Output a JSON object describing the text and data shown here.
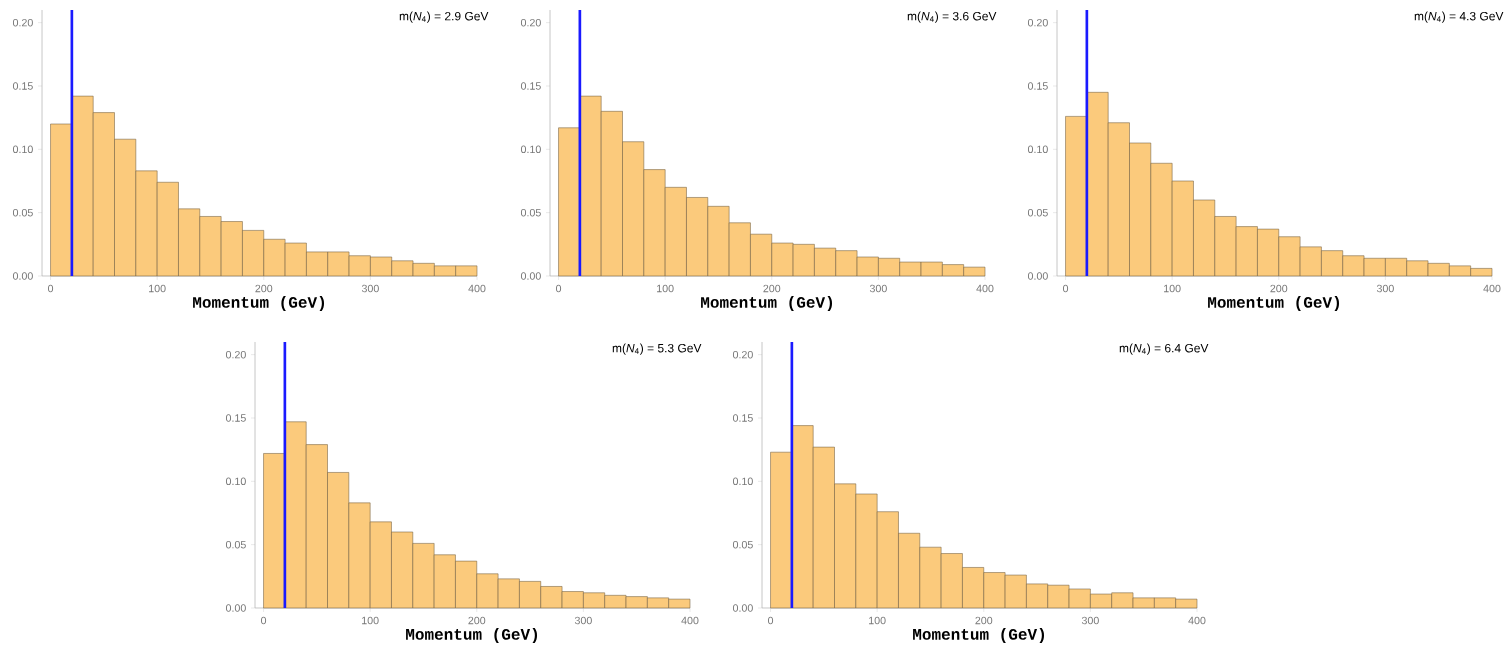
{
  "chart_data": [
    {
      "type": "histogram",
      "title": "m(*N*$_{4}$) =  2.9 GeV",
      "xlabel": "Momentum (GeV)",
      "bins": [
        0,
        20,
        40,
        60,
        80,
        100,
        120,
        140,
        160,
        180,
        200,
        220,
        240,
        260,
        280,
        300,
        320,
        340,
        360,
        380,
        400
      ],
      "values": [
        0.12,
        0.142,
        0.129,
        0.108,
        0.083,
        0.074,
        0.053,
        0.047,
        0.043,
        0.036,
        0.029,
        0.026,
        0.019,
        0.019,
        0.016,
        0.015,
        0.012,
        0.01,
        0.008,
        0.008
      ],
      "color": "#fbca7c",
      "xlim": [
        -8,
        400
      ],
      "ylim": [
        0,
        0.21
      ],
      "xticks": [
        0,
        100,
        200,
        300,
        400
      ],
      "yticks": [
        {
          "value": 0,
          "label": "0.00"
        },
        {
          "value": 0.05,
          "label": "0.05"
        },
        {
          "value": 0.1,
          "label": "0.10"
        },
        {
          "value": 0.15,
          "label": "0.15"
        },
        {
          "value": 0.2,
          "label": "0.20"
        }
      ],
      "ref_lines": [
        {
          "axis": "x",
          "value": 20,
          "color": "#1a1aff"
        }
      ]
    },
    {
      "type": "histogram",
      "title": "m(*N*$_{4}$) =  3.6 GeV",
      "xlabel": "Momentum (GeV)",
      "bins": [
        0,
        20,
        40,
        60,
        80,
        100,
        120,
        140,
        160,
        180,
        200,
        220,
        240,
        260,
        280,
        300,
        320,
        340,
        360,
        380,
        400
      ],
      "values": [
        0.117,
        0.142,
        0.13,
        0.106,
        0.084,
        0.07,
        0.062,
        0.055,
        0.042,
        0.033,
        0.026,
        0.025,
        0.022,
        0.02,
        0.015,
        0.014,
        0.011,
        0.011,
        0.009,
        0.007
      ],
      "color": "#fbca7c",
      "xlim": [
        -8,
        400
      ],
      "ylim": [
        0,
        0.21
      ],
      "xticks": [
        0,
        100,
        200,
        300,
        400
      ],
      "yticks": [
        {
          "value": 0,
          "label": "0.00"
        },
        {
          "value": 0.05,
          "label": "0.05"
        },
        {
          "value": 0.1,
          "label": "0.10"
        },
        {
          "value": 0.15,
          "label": "0.15"
        },
        {
          "value": 0.2,
          "label": "0.20"
        }
      ],
      "ref_lines": [
        {
          "axis": "x",
          "value": 20,
          "color": "#1a1aff"
        }
      ]
    },
    {
      "type": "histogram",
      "title": "m(*N*$_{4}$) =  4.3 GeV",
      "xlabel": "Momentum (GeV)",
      "bins": [
        0,
        20,
        40,
        60,
        80,
        100,
        120,
        140,
        160,
        180,
        200,
        220,
        240,
        260,
        280,
        300,
        320,
        340,
        360,
        380,
        400
      ],
      "values": [
        0.126,
        0.145,
        0.121,
        0.105,
        0.089,
        0.075,
        0.06,
        0.047,
        0.039,
        0.037,
        0.031,
        0.023,
        0.02,
        0.016,
        0.014,
        0.014,
        0.012,
        0.01,
        0.008,
        0.006
      ],
      "color": "#fbca7c",
      "xlim": [
        -8,
        400
      ],
      "ylim": [
        0,
        0.21
      ],
      "xticks": [
        0,
        100,
        200,
        300,
        400
      ],
      "yticks": [
        {
          "value": 0,
          "label": "0.00"
        },
        {
          "value": 0.05,
          "label": "0.05"
        },
        {
          "value": 0.1,
          "label": "0.10"
        },
        {
          "value": 0.15,
          "label": "0.15"
        },
        {
          "value": 0.2,
          "label": "0.20"
        }
      ],
      "ref_lines": [
        {
          "axis": "x",
          "value": 20,
          "color": "#1a1aff"
        }
      ]
    },
    {
      "type": "histogram",
      "title": "m(*N*$_{4}$) =  5.3 GeV",
      "xlabel": "Momentum (GeV)",
      "bins": [
        0,
        20,
        40,
        60,
        80,
        100,
        120,
        140,
        160,
        180,
        200,
        220,
        240,
        260,
        280,
        300,
        320,
        340,
        360,
        380,
        400
      ],
      "values": [
        0.122,
        0.147,
        0.129,
        0.107,
        0.083,
        0.068,
        0.06,
        0.051,
        0.042,
        0.037,
        0.027,
        0.023,
        0.021,
        0.017,
        0.013,
        0.012,
        0.01,
        0.009,
        0.008,
        0.007
      ],
      "color": "#fbca7c",
      "xlim": [
        -8,
        400
      ],
      "ylim": [
        0,
        0.21
      ],
      "xticks": [
        0,
        100,
        200,
        300,
        400
      ],
      "yticks": [
        {
          "value": 0,
          "label": "0.00"
        },
        {
          "value": 0.05,
          "label": "0.05"
        },
        {
          "value": 0.1,
          "label": "0.10"
        },
        {
          "value": 0.15,
          "label": "0.15"
        },
        {
          "value": 0.2,
          "label": "0.20"
        }
      ],
      "ref_lines": [
        {
          "axis": "x",
          "value": 20,
          "color": "#1a1aff"
        }
      ]
    },
    {
      "type": "histogram",
      "title": "m(*N*$_{4}$) =  6.4 GeV",
      "xlabel": "Momentum (GeV)",
      "bins": [
        0,
        20,
        40,
        60,
        80,
        100,
        120,
        140,
        160,
        180,
        200,
        220,
        240,
        260,
        280,
        300,
        320,
        340,
        360,
        380,
        400
      ],
      "values": [
        0.123,
        0.144,
        0.127,
        0.098,
        0.09,
        0.076,
        0.059,
        0.048,
        0.043,
        0.032,
        0.028,
        0.026,
        0.019,
        0.018,
        0.015,
        0.011,
        0.012,
        0.008,
        0.008,
        0.007
      ],
      "color": "#fbca7c",
      "xlim": [
        -8,
        400
      ],
      "ylim": [
        0,
        0.21
      ],
      "xticks": [
        0,
        100,
        200,
        300,
        400
      ],
      "yticks": [
        {
          "value": 0,
          "label": "0.00"
        },
        {
          "value": 0.05,
          "label": "0.05"
        },
        {
          "value": 0.1,
          "label": "0.10"
        },
        {
          "value": 0.15,
          "label": "0.15"
        },
        {
          "value": 0.2,
          "label": "0.20"
        }
      ],
      "ref_lines": [
        {
          "axis": "x",
          "value": 20,
          "color": "#1a1aff"
        }
      ]
    }
  ]
}
